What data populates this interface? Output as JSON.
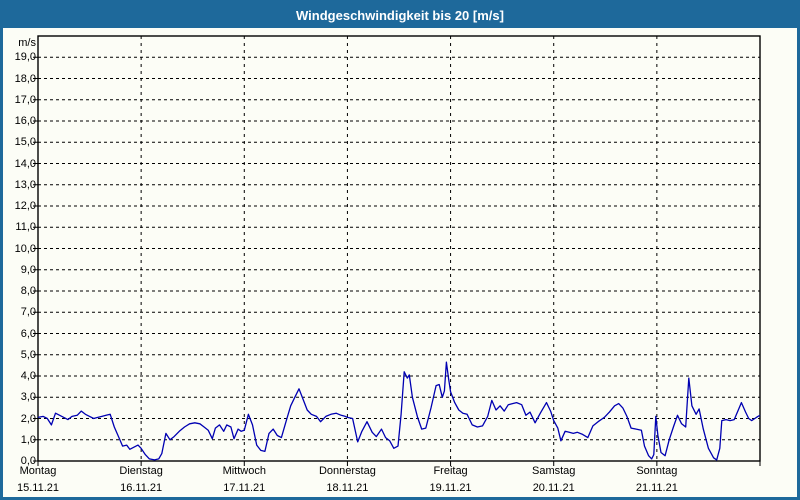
{
  "window": {
    "title": "Windgeschwindigkeit bis 20 [m/s]"
  },
  "colors": {
    "frame": "#1e699b",
    "titlebar_bg": "#1e699b",
    "title_text": "#ffffff",
    "plot_bg": "#fcfdf6",
    "grid": "#000000",
    "axis": "#000000",
    "line": "#0000b2"
  },
  "chart_data": {
    "type": "line",
    "title": "Windgeschwindigkeit bis 20 [m/s]",
    "ylabel": "m/s",
    "ylim": [
      0,
      20
    ],
    "ytick_step": 1,
    "ytick_max_labeled": 19,
    "decimal_separator": ",",
    "grid": "dashed",
    "legend_position": "none",
    "x_days": [
      {
        "name": "Montag",
        "date": "15.11.21"
      },
      {
        "name": "Dienstag",
        "date": "16.11.21"
      },
      {
        "name": "Mittwoch",
        "date": "17.11.21"
      },
      {
        "name": "Donnerstag",
        "date": "18.11.21"
      },
      {
        "name": "Freitag",
        "date": "19.11.21"
      },
      {
        "name": "Samstag",
        "date": "20.11.21"
      },
      {
        "name": "Sonntag",
        "date": "21.11.21"
      }
    ],
    "series": [
      {
        "name": "Windgeschwindigkeit",
        "color": "#0000b2",
        "points": [
          [
            0.0,
            2.05
          ],
          [
            0.05,
            2.1
          ],
          [
            0.09,
            2.0
          ],
          [
            0.13,
            1.7
          ],
          [
            0.17,
            2.25
          ],
          [
            0.21,
            2.15
          ],
          [
            0.25,
            2.05
          ],
          [
            0.29,
            1.95
          ],
          [
            0.33,
            2.1
          ],
          [
            0.38,
            2.15
          ],
          [
            0.42,
            2.35
          ],
          [
            0.46,
            2.2
          ],
          [
            0.5,
            2.1
          ],
          [
            0.54,
            2.0
          ],
          [
            0.58,
            2.05
          ],
          [
            0.62,
            2.1
          ],
          [
            0.66,
            2.15
          ],
          [
            0.7,
            2.2
          ],
          [
            0.74,
            1.6
          ],
          [
            0.78,
            1.15
          ],
          [
            0.82,
            0.7
          ],
          [
            0.86,
            0.75
          ],
          [
            0.89,
            0.55
          ],
          [
            0.93,
            0.65
          ],
          [
            0.97,
            0.75
          ],
          [
            1.0,
            0.6
          ],
          [
            1.04,
            0.3
          ],
          [
            1.08,
            0.1
          ],
          [
            1.13,
            0.05
          ],
          [
            1.17,
            0.1
          ],
          [
            1.2,
            0.35
          ],
          [
            1.24,
            1.3
          ],
          [
            1.28,
            1.0
          ],
          [
            1.32,
            1.15
          ],
          [
            1.37,
            1.4
          ],
          [
            1.42,
            1.6
          ],
          [
            1.47,
            1.75
          ],
          [
            1.52,
            1.8
          ],
          [
            1.57,
            1.75
          ],
          [
            1.61,
            1.6
          ],
          [
            1.65,
            1.45
          ],
          [
            1.69,
            1.05
          ],
          [
            1.72,
            1.55
          ],
          [
            1.76,
            1.7
          ],
          [
            1.8,
            1.4
          ],
          [
            1.83,
            1.7
          ],
          [
            1.87,
            1.6
          ],
          [
            1.9,
            1.05
          ],
          [
            1.94,
            1.5
          ],
          [
            1.97,
            1.4
          ],
          [
            2.0,
            1.45
          ],
          [
            2.04,
            2.2
          ],
          [
            2.08,
            1.7
          ],
          [
            2.12,
            0.75
          ],
          [
            2.16,
            0.5
          ],
          [
            2.2,
            0.45
          ],
          [
            2.24,
            1.3
          ],
          [
            2.28,
            1.5
          ],
          [
            2.32,
            1.2
          ],
          [
            2.36,
            1.1
          ],
          [
            2.41,
            1.95
          ],
          [
            2.45,
            2.6
          ],
          [
            2.49,
            3.0
          ],
          [
            2.53,
            3.4
          ],
          [
            2.57,
            2.9
          ],
          [
            2.61,
            2.4
          ],
          [
            2.65,
            2.2
          ],
          [
            2.7,
            2.1
          ],
          [
            2.74,
            1.85
          ],
          [
            2.79,
            2.1
          ],
          [
            2.84,
            2.2
          ],
          [
            2.89,
            2.25
          ],
          [
            2.94,
            2.15
          ],
          [
            2.98,
            2.1
          ],
          [
            3.0,
            2.05
          ],
          [
            3.05,
            2.0
          ],
          [
            3.1,
            0.9
          ],
          [
            3.14,
            1.4
          ],
          [
            3.19,
            1.85
          ],
          [
            3.24,
            1.35
          ],
          [
            3.28,
            1.15
          ],
          [
            3.33,
            1.5
          ],
          [
            3.37,
            1.1
          ],
          [
            3.41,
            0.95
          ],
          [
            3.45,
            0.6
          ],
          [
            3.49,
            0.7
          ],
          [
            3.52,
            2.2
          ],
          [
            3.55,
            4.2
          ],
          [
            3.58,
            3.9
          ],
          [
            3.6,
            4.05
          ],
          [
            3.63,
            3.0
          ],
          [
            3.68,
            2.05
          ],
          [
            3.72,
            1.5
          ],
          [
            3.76,
            1.55
          ],
          [
            3.81,
            2.5
          ],
          [
            3.86,
            3.55
          ],
          [
            3.89,
            3.6
          ],
          [
            3.92,
            3.0
          ],
          [
            3.94,
            3.3
          ],
          [
            3.96,
            4.65
          ],
          [
            3.98,
            3.9
          ],
          [
            4.0,
            3.25
          ],
          [
            4.04,
            2.75
          ],
          [
            4.08,
            2.4
          ],
          [
            4.12,
            2.25
          ],
          [
            4.16,
            2.2
          ],
          [
            4.21,
            1.7
          ],
          [
            4.26,
            1.6
          ],
          [
            4.31,
            1.65
          ],
          [
            4.36,
            2.1
          ],
          [
            4.4,
            2.85
          ],
          [
            4.44,
            2.4
          ],
          [
            4.48,
            2.6
          ],
          [
            4.52,
            2.35
          ],
          [
            4.56,
            2.65
          ],
          [
            4.6,
            2.7
          ],
          [
            4.64,
            2.75
          ],
          [
            4.69,
            2.65
          ],
          [
            4.73,
            2.15
          ],
          [
            4.77,
            2.3
          ],
          [
            4.82,
            1.8
          ],
          [
            4.87,
            2.25
          ],
          [
            4.93,
            2.75
          ],
          [
            4.97,
            2.35
          ],
          [
            5.0,
            1.9
          ],
          [
            5.04,
            1.55
          ],
          [
            5.07,
            0.95
          ],
          [
            5.11,
            1.4
          ],
          [
            5.15,
            1.35
          ],
          [
            5.19,
            1.3
          ],
          [
            5.23,
            1.35
          ],
          [
            5.28,
            1.25
          ],
          [
            5.33,
            1.1
          ],
          [
            5.38,
            1.65
          ],
          [
            5.43,
            1.85
          ],
          [
            5.49,
            2.05
          ],
          [
            5.54,
            2.3
          ],
          [
            5.59,
            2.6
          ],
          [
            5.63,
            2.7
          ],
          [
            5.67,
            2.5
          ],
          [
            5.71,
            2.1
          ],
          [
            5.75,
            1.55
          ],
          [
            5.8,
            1.5
          ],
          [
            5.85,
            1.45
          ],
          [
            5.88,
            0.7
          ],
          [
            5.92,
            0.25
          ],
          [
            5.95,
            0.1
          ],
          [
            5.97,
            0.3
          ],
          [
            5.99,
            2.1
          ],
          [
            6.01,
            1.2
          ],
          [
            6.04,
            0.4
          ],
          [
            6.08,
            0.25
          ],
          [
            6.12,
            1.0
          ],
          [
            6.16,
            1.6
          ],
          [
            6.2,
            2.15
          ],
          [
            6.24,
            1.75
          ],
          [
            6.28,
            1.6
          ],
          [
            6.31,
            3.9
          ],
          [
            6.34,
            2.6
          ],
          [
            6.38,
            2.2
          ],
          [
            6.41,
            2.45
          ],
          [
            6.45,
            1.5
          ],
          [
            6.5,
            0.6
          ],
          [
            6.55,
            0.15
          ],
          [
            6.58,
            0.05
          ],
          [
            6.61,
            0.6
          ],
          [
            6.63,
            1.9
          ],
          [
            6.67,
            1.95
          ],
          [
            6.71,
            1.9
          ],
          [
            6.75,
            1.95
          ],
          [
            6.79,
            2.4
          ],
          [
            6.82,
            2.75
          ],
          [
            6.86,
            2.3
          ],
          [
            6.89,
            2.0
          ],
          [
            6.92,
            1.9
          ],
          [
            6.95,
            2.0
          ],
          [
            6.98,
            2.1
          ],
          [
            7.0,
            2.15
          ]
        ]
      }
    ]
  }
}
